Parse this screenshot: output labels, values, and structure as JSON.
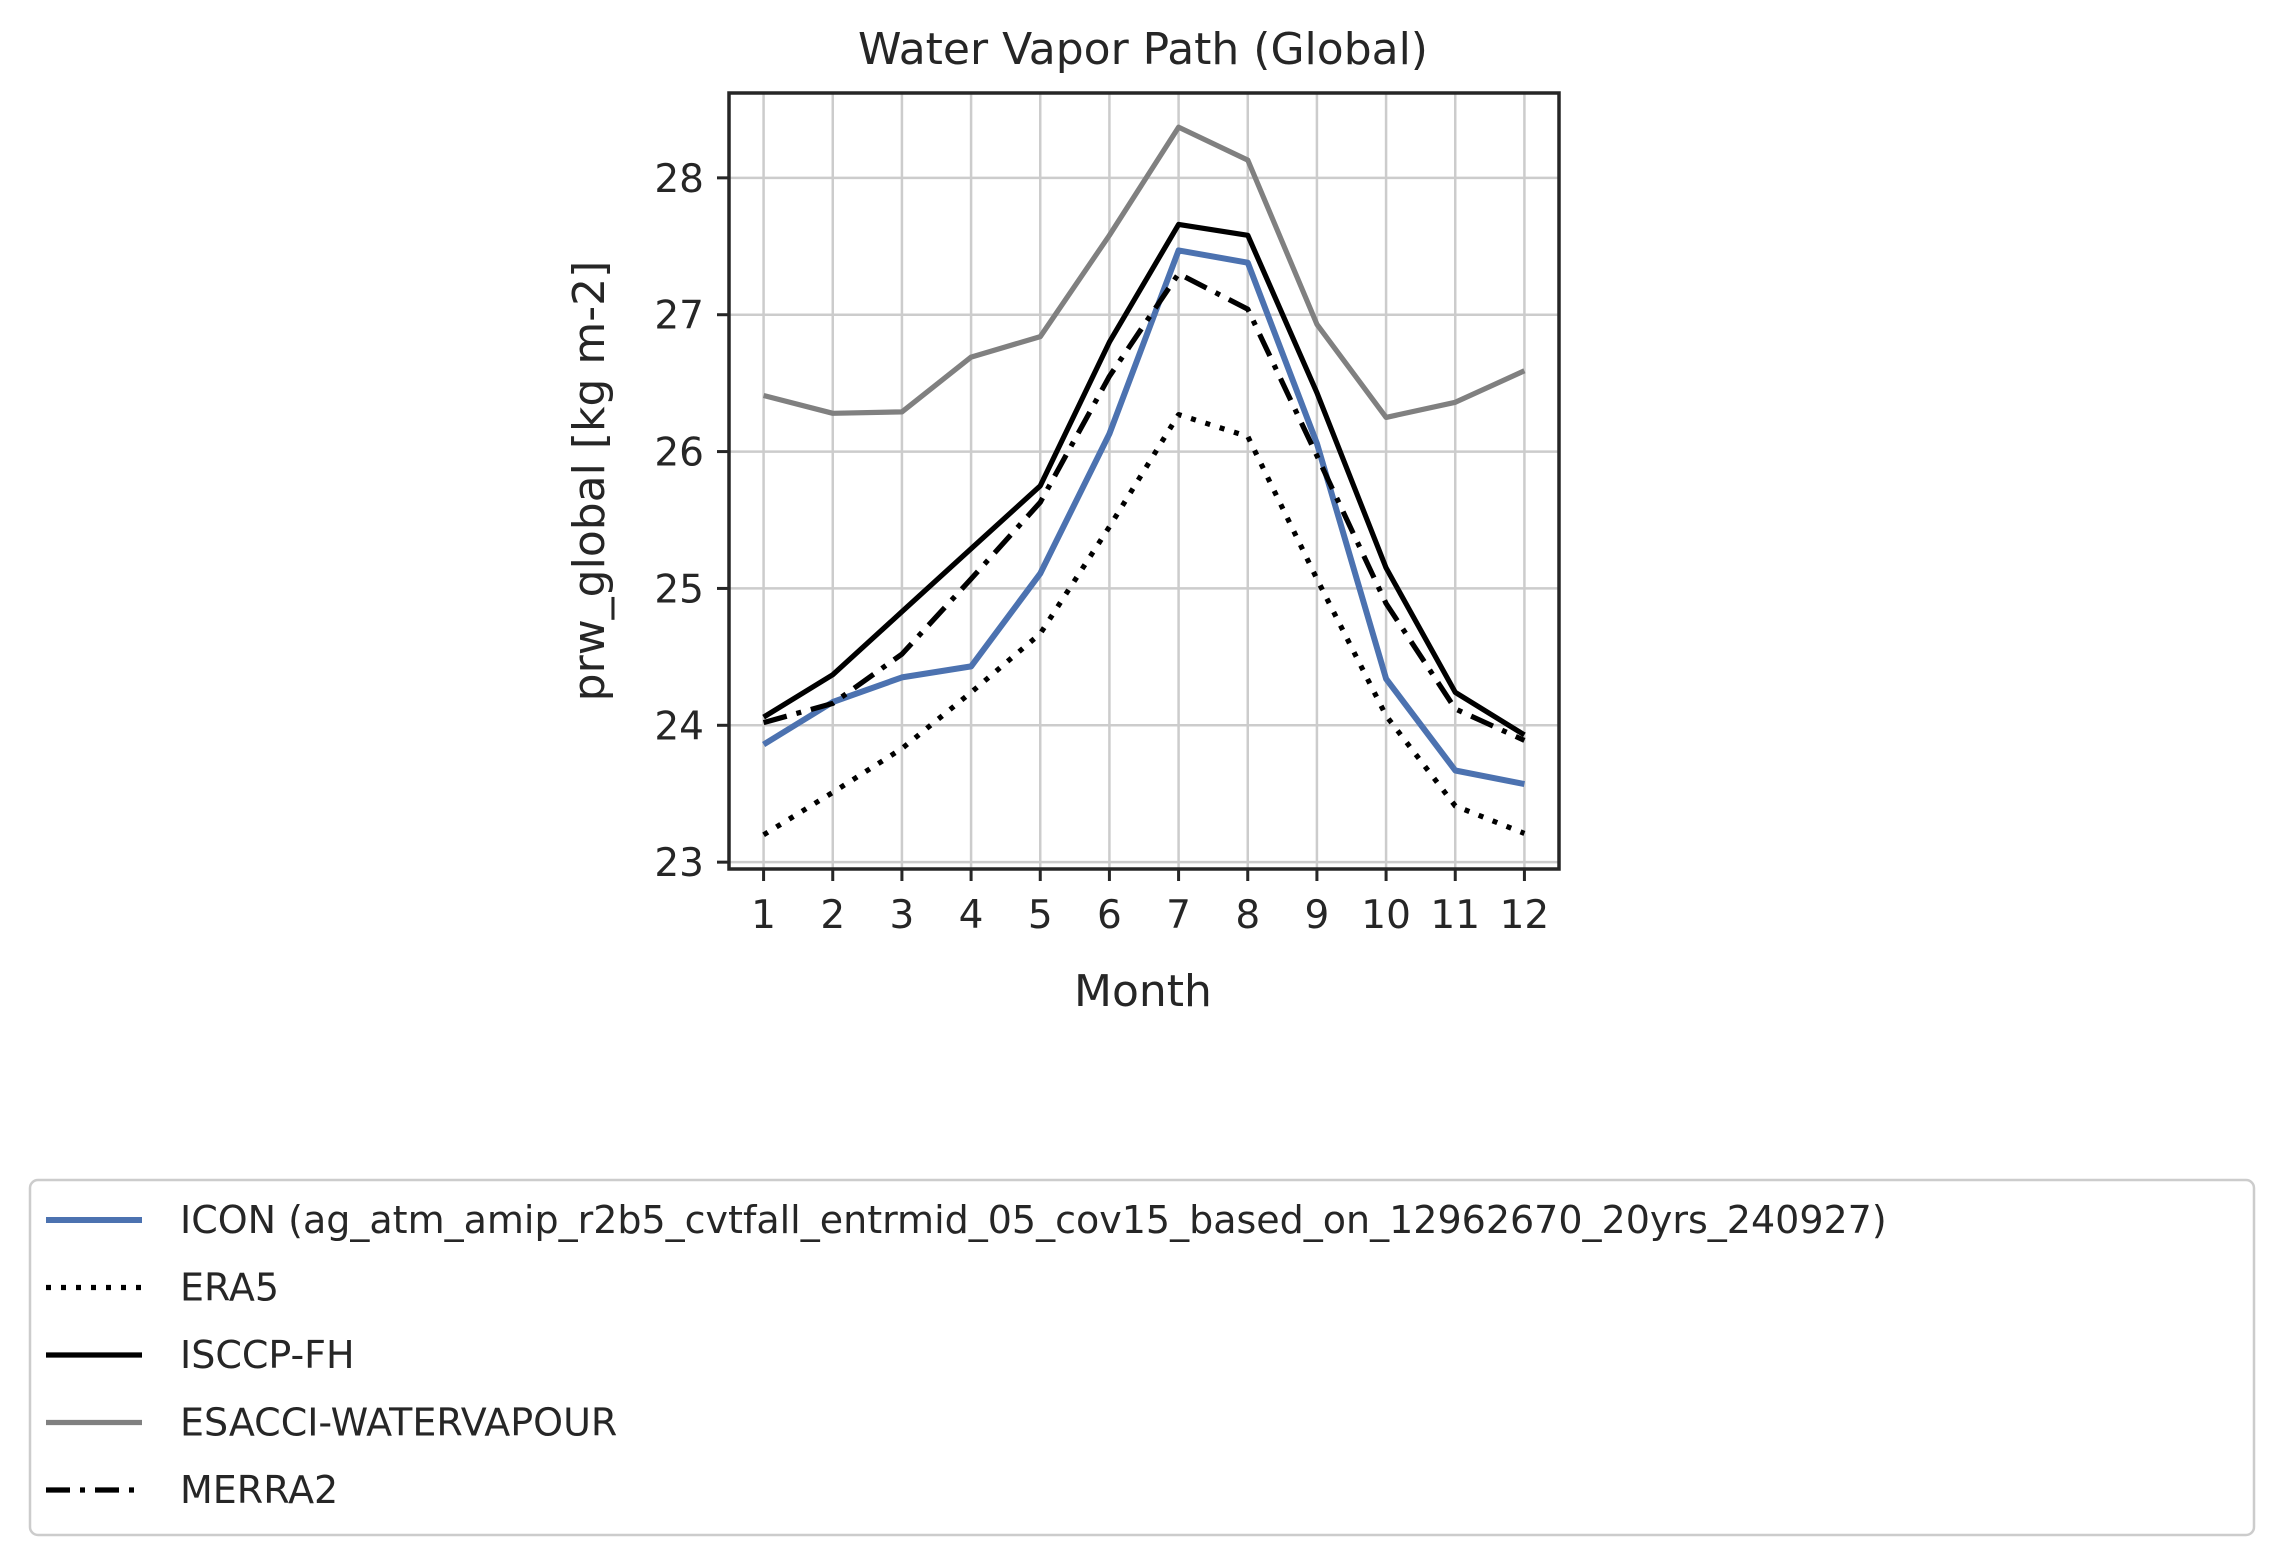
{
  "chart_data": {
    "type": "line",
    "title": "Water Vapor Path (Global)",
    "xlabel": "Month",
    "ylabel": "prw_global [kg m-2]",
    "x": [
      1,
      2,
      3,
      4,
      5,
      6,
      7,
      8,
      9,
      10,
      11,
      12
    ],
    "xlim": [
      0.5,
      12.5
    ],
    "ylim": [
      22.95,
      28.62
    ],
    "yticks": [
      23,
      24,
      25,
      26,
      27,
      28
    ],
    "grid": true,
    "legend_position": "below",
    "series": [
      {
        "name": "ICON (ag_atm_amip_r2b5_cvtfall_entrmid_05_cov15_based_on_12962670_20yrs_240927)",
        "color": "#4c72b0",
        "style": "solid",
        "values": [
          23.86,
          24.17,
          24.35,
          24.43,
          25.11,
          26.13,
          27.47,
          27.38,
          26.06,
          24.34,
          23.67,
          23.57
        ]
      },
      {
        "name": "ERA5",
        "color": "#000000",
        "style": "dotted",
        "values": [
          23.2,
          23.51,
          23.83,
          24.24,
          24.67,
          25.45,
          26.27,
          26.11,
          25.07,
          24.07,
          23.41,
          23.21
        ]
      },
      {
        "name": "ISCCP-FH",
        "color": "#000000",
        "style": "solid",
        "values": [
          24.06,
          24.37,
          24.83,
          25.29,
          25.75,
          26.8,
          27.66,
          27.58,
          26.43,
          25.15,
          24.24,
          23.93
        ]
      },
      {
        "name": "ESACCI-WATERVAPOUR",
        "color": "#808080",
        "style": "solid",
        "values": [
          26.41,
          26.28,
          26.29,
          26.69,
          26.84,
          27.58,
          28.37,
          28.13,
          26.93,
          26.25,
          26.36,
          26.59
        ]
      },
      {
        "name": "MERRA2",
        "color": "#000000",
        "style": "dashdot",
        "values": [
          24.02,
          24.16,
          24.52,
          25.07,
          25.63,
          26.55,
          27.3,
          27.04,
          25.97,
          24.89,
          24.12,
          23.89
        ]
      }
    ]
  }
}
